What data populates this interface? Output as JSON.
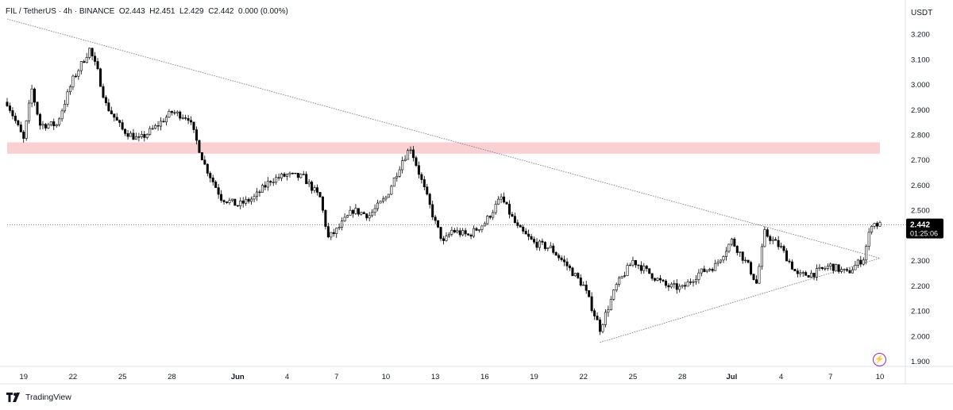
{
  "header": {
    "symbol": "FIL / TetherUS · 4h · BINANCE",
    "open_label": "O",
    "open": "2.443",
    "high_label": "H",
    "high": "2.451",
    "low_label": "L",
    "low": "2.429",
    "close_label": "C",
    "close": "2.442",
    "change": "0.000 (0.00%)"
  },
  "currency": "USDT",
  "price_tag": {
    "price": "2.442",
    "countdown": "01:25:06"
  },
  "brand": "TradingView",
  "icons": {
    "brand_logo": "tradingview-logo-icon",
    "alert": "lightning-bolt-icon"
  },
  "colors": {
    "bull": "#ffffff",
    "bear": "#000000",
    "outline": "#000000",
    "resistance_zone": "#f9d1d3",
    "trendline": "#787b86",
    "price_tag_bg": "#000000",
    "price_tag_text": "#ffffff",
    "alert": "#9c27b0",
    "axis_text": "#131722"
  },
  "chart_data": {
    "type": "candlestick",
    "title": "",
    "timeframe": "4h",
    "y_axis": {
      "ticks": [
        "3.200",
        "3.100",
        "3.000",
        "2.900",
        "2.800",
        "2.700",
        "2.600",
        "2.500",
        "2.400",
        "2.300",
        "2.200",
        "2.100",
        "2.000",
        "1.900"
      ],
      "range": [
        1.88,
        3.26
      ]
    },
    "x_axis": {
      "tick_labels": [
        "19",
        "22",
        "25",
        "28",
        "Jun",
        "4",
        "7",
        "10",
        "13",
        "16",
        "19",
        "22",
        "25",
        "28",
        "Jul",
        "4",
        "7",
        "10"
      ],
      "start_date": "2024-05-18",
      "end_date": "2024-07-10"
    },
    "resistance_zone": {
      "from": 2.725,
      "to": 2.77
    },
    "descending_trendline": [
      [
        "2024-05-18",
        3.26
      ],
      [
        "2024-07-10",
        2.31
      ]
    ],
    "ascending_trendline": [
      [
        "2024-06-23",
        1.975
      ],
      [
        "2024-07-10",
        2.31
      ]
    ],
    "last_price_line": 2.442,
    "close_path": [
      [
        "2024-05-18T00:00",
        2.93
      ],
      [
        "2024-05-19T00:00",
        2.78
      ],
      [
        "2024-05-19T12:00",
        2.98
      ],
      [
        "2024-05-20T00:00",
        2.84
      ],
      [
        "2024-05-21T00:00",
        2.84
      ],
      [
        "2024-05-22T00:00",
        3.02
      ],
      [
        "2024-05-23T00:00",
        3.14
      ],
      [
        "2024-05-23T12:00",
        3.05
      ],
      [
        "2024-05-24T00:00",
        2.92
      ],
      [
        "2024-05-25T00:00",
        2.82
      ],
      [
        "2024-05-26T00:00",
        2.78
      ],
      [
        "2024-05-27T00:00",
        2.83
      ],
      [
        "2024-05-28T00:00",
        2.89
      ],
      [
        "2024-05-29T00:00",
        2.87
      ],
      [
        "2024-05-30T00:00",
        2.68
      ],
      [
        "2024-05-31T00:00",
        2.55
      ],
      [
        "2024-06-01T00:00",
        2.52
      ],
      [
        "2024-06-02T00:00",
        2.55
      ],
      [
        "2024-06-03T00:00",
        2.62
      ],
      [
        "2024-06-04T00:00",
        2.64
      ],
      [
        "2024-06-05T00:00",
        2.63
      ],
      [
        "2024-06-06T00:00",
        2.55
      ],
      [
        "2024-06-06T12:00",
        2.39
      ],
      [
        "2024-06-07T00:00",
        2.42
      ],
      [
        "2024-06-08T00:00",
        2.5
      ],
      [
        "2024-06-09T00:00",
        2.48
      ],
      [
        "2024-06-10T00:00",
        2.55
      ],
      [
        "2024-06-11T00:00",
        2.7
      ],
      [
        "2024-06-11T12:00",
        2.75
      ],
      [
        "2024-06-12T00:00",
        2.65
      ],
      [
        "2024-06-13T00:00",
        2.45
      ],
      [
        "2024-06-13T12:00",
        2.37
      ],
      [
        "2024-06-14T00:00",
        2.42
      ],
      [
        "2024-06-15T00:00",
        2.4
      ],
      [
        "2024-06-16T00:00",
        2.45
      ],
      [
        "2024-06-17T00:00",
        2.55
      ],
      [
        "2024-06-18T00:00",
        2.43
      ],
      [
        "2024-06-19T00:00",
        2.37
      ],
      [
        "2024-06-20T00:00",
        2.35
      ],
      [
        "2024-06-21T00:00",
        2.28
      ],
      [
        "2024-06-22T00:00",
        2.2
      ],
      [
        "2024-06-23T00:00",
        2.03
      ],
      [
        "2024-06-24T00:00",
        2.2
      ],
      [
        "2024-06-25T00:00",
        2.3
      ],
      [
        "2024-06-26T00:00",
        2.25
      ],
      [
        "2024-06-27T00:00",
        2.2
      ],
      [
        "2024-06-28T00:00",
        2.19
      ],
      [
        "2024-06-29T00:00",
        2.25
      ],
      [
        "2024-06-30T00:00",
        2.28
      ],
      [
        "2024-07-01T00:00",
        2.38
      ],
      [
        "2024-07-02T00:00",
        2.28
      ],
      [
        "2024-07-02T12:00",
        2.21
      ],
      [
        "2024-07-03T00:00",
        2.41
      ],
      [
        "2024-07-04T00:00",
        2.35
      ],
      [
        "2024-07-05T00:00",
        2.24
      ],
      [
        "2024-07-06T00:00",
        2.25
      ],
      [
        "2024-07-07T00:00",
        2.28
      ],
      [
        "2024-07-08T00:00",
        2.25
      ],
      [
        "2024-07-09T00:00",
        2.31
      ],
      [
        "2024-07-09T12:00",
        2.45
      ],
      [
        "2024-07-10T00:00",
        2.442
      ]
    ],
    "grid": false,
    "legend": "top-left"
  }
}
